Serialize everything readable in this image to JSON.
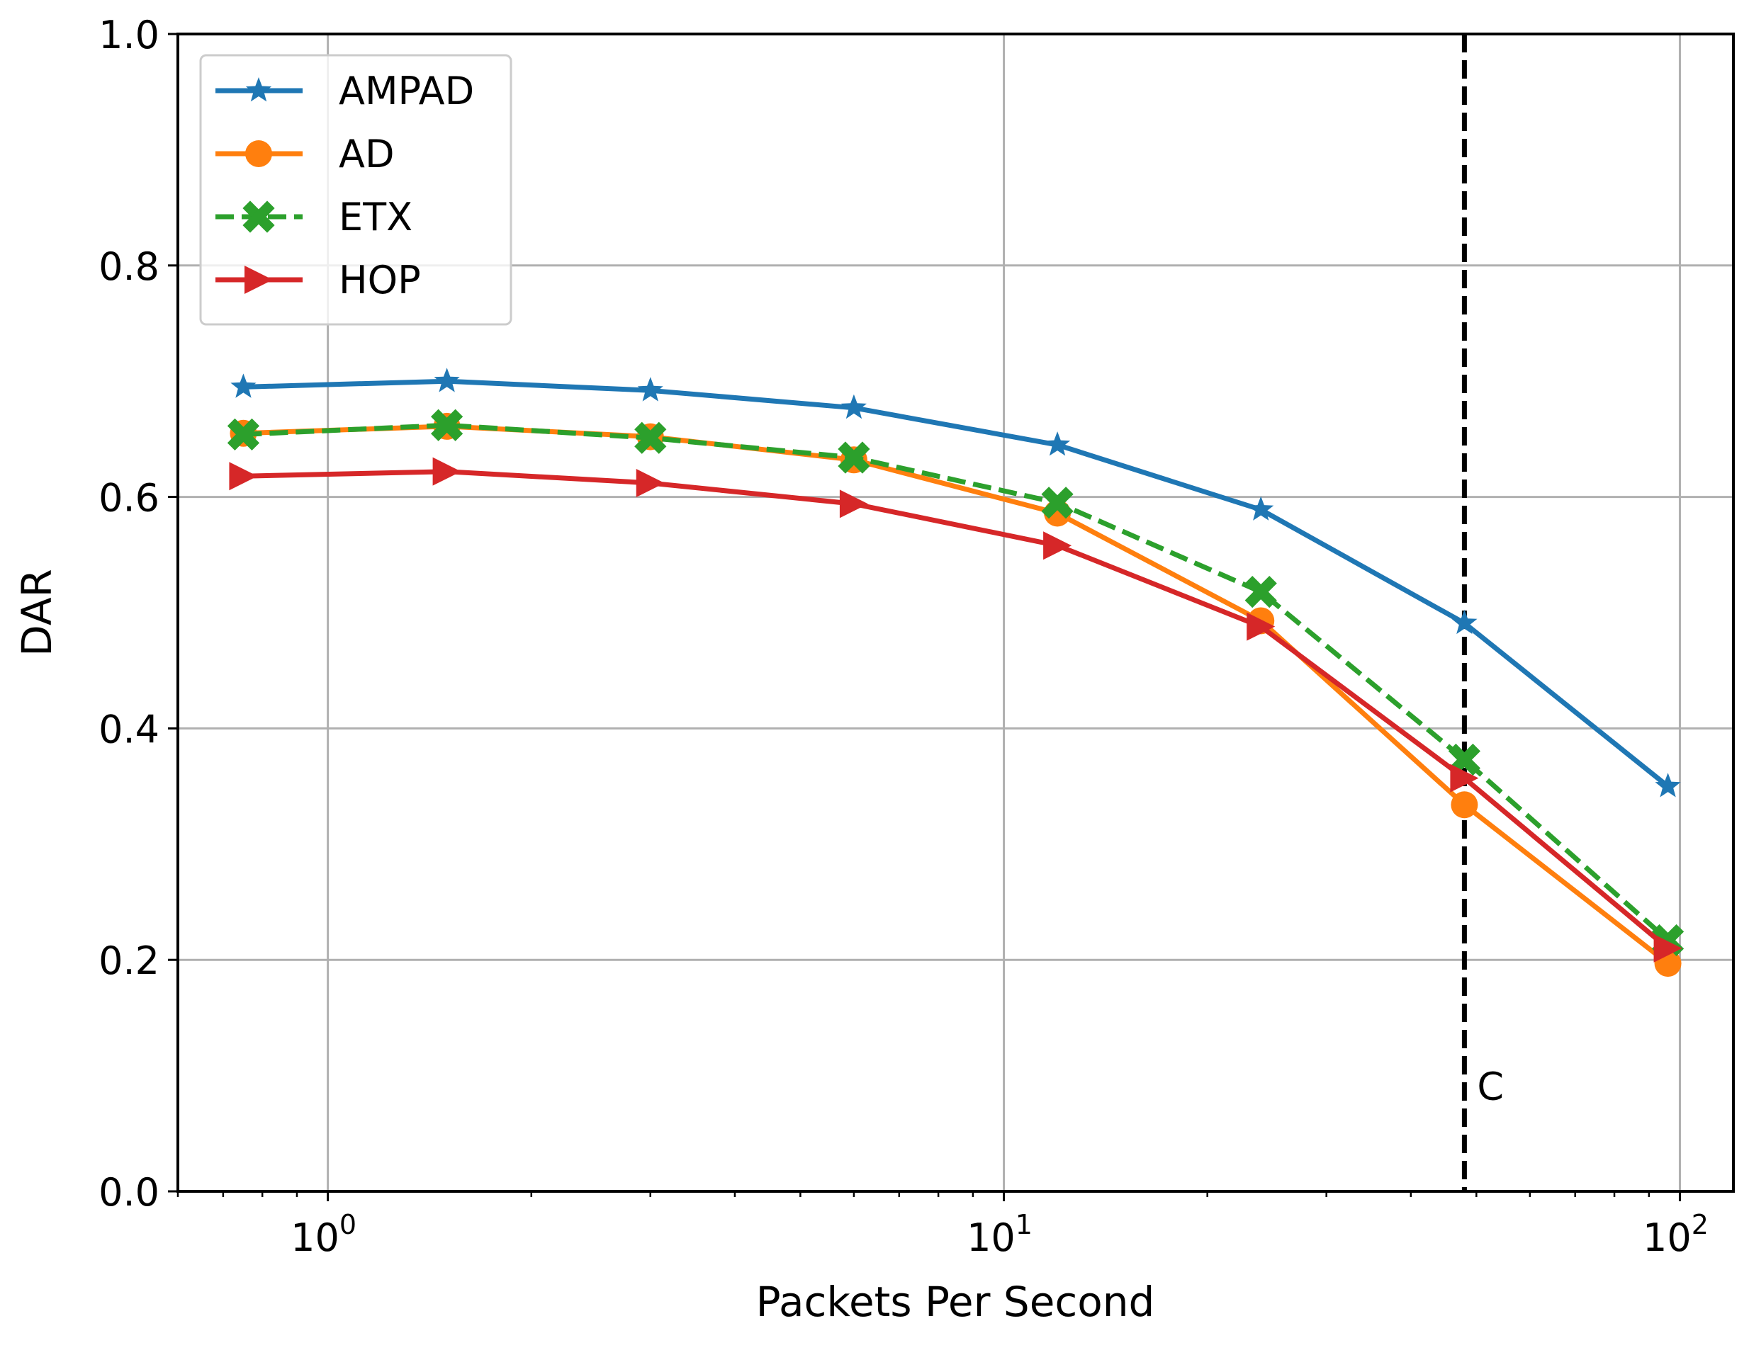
{
  "chart_data": {
    "type": "line",
    "xlabel": "Packets Per Second",
    "ylabel": "DAR",
    "xscale": "log",
    "xlim": [
      0.6,
      120
    ],
    "ylim": [
      0.0,
      1.0
    ],
    "grid": true,
    "legend_position": "top-left",
    "x": [
      0.75,
      1.5,
      3,
      6,
      12,
      24,
      48,
      96
    ],
    "x_ticks": [
      {
        "value": 1,
        "base": "10",
        "exp": "0"
      },
      {
        "value": 10,
        "base": "10",
        "exp": "1"
      },
      {
        "value": 100,
        "base": "10",
        "exp": "2"
      }
    ],
    "y_ticks": [
      "0.0",
      "0.2",
      "0.4",
      "0.6",
      "0.8",
      "1.0"
    ],
    "series": [
      {
        "name": "AMPAD",
        "color": "#1f77b4",
        "marker": "star",
        "dash": "solid",
        "values": [
          0.695,
          0.7,
          0.692,
          0.677,
          0.645,
          0.589,
          0.491,
          0.35
        ]
      },
      {
        "name": "AD",
        "color": "#ff7f0e",
        "marker": "circle",
        "dash": "solid",
        "values": [
          0.655,
          0.661,
          0.652,
          0.632,
          0.586,
          0.493,
          0.334,
          0.197
        ]
      },
      {
        "name": "ETX",
        "color": "#2ca02c",
        "marker": "x-filled",
        "dash": "dashed",
        "values": [
          0.654,
          0.662,
          0.651,
          0.634,
          0.595,
          0.518,
          0.373,
          0.217
        ]
      },
      {
        "name": "HOP",
        "color": "#d62728",
        "marker": "triangle-right",
        "dash": "solid",
        "values": [
          0.618,
          0.622,
          0.612,
          0.594,
          0.558,
          0.488,
          0.357,
          0.21
        ]
      }
    ],
    "vline": {
      "x": 48,
      "label": "C",
      "color": "#000000",
      "style": "dashed"
    }
  }
}
